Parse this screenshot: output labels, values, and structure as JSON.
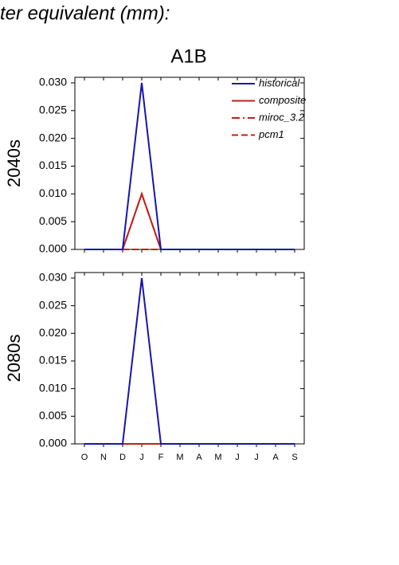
{
  "header": {
    "title": "ter equivalent (mm):",
    "scenario": "A1B"
  },
  "chart_data": [
    {
      "type": "line",
      "ylabel": "2040s",
      "series": [
        {
          "name": "historical",
          "color": "#1515b0",
          "dash": "solid",
          "values": [
            0,
            0,
            0,
            0.03,
            0,
            0,
            0,
            0,
            0,
            0,
            0,
            0
          ]
        },
        {
          "name": "composite",
          "color": "#c0201c",
          "dash": "solid",
          "values": [
            0,
            0,
            0,
            0.01,
            0,
            0,
            0,
            0,
            0,
            0,
            0,
            0
          ]
        },
        {
          "name": "miroc_3.2",
          "color": "#c0201c",
          "dash": "dashdot",
          "values": [
            0,
            0,
            0,
            0.01,
            0,
            0,
            0,
            0,
            0,
            0,
            0,
            0
          ]
        },
        {
          "name": "pcm1",
          "color": "#c0201c",
          "dash": "dashed",
          "values": [
            0,
            0,
            0,
            0,
            0,
            0,
            0,
            0,
            0,
            0,
            0,
            0
          ]
        }
      ],
      "ylim": [
        0,
        0.031
      ],
      "yticks": [
        {
          "value": 0,
          "label": "0.000"
        },
        {
          "value": 0.005,
          "label": "0.005"
        },
        {
          "value": 0.01,
          "label": "0.010"
        },
        {
          "value": 0.015,
          "label": "0.015"
        },
        {
          "value": 0.02,
          "label": "0.020"
        },
        {
          "value": 0.025,
          "label": "0.025"
        },
        {
          "value": 0.03,
          "label": "0.030"
        }
      ]
    },
    {
      "type": "line",
      "ylabel": "2080s",
      "categories": [
        "O",
        "N",
        "D",
        "J",
        "F",
        "M",
        "A",
        "M",
        "J",
        "J",
        "A",
        "S"
      ],
      "series": [
        {
          "color": "#1515b0",
          "dash": "solid",
          "values": [
            0,
            0,
            0,
            0.03,
            0,
            0,
            0,
            0,
            0,
            0,
            0,
            0
          ]
        },
        {
          "color": "#c0201c",
          "dash": "solid",
          "values": [
            0,
            0,
            0,
            0,
            0,
            0,
            0,
            0,
            0,
            0,
            0,
            0
          ]
        },
        {
          "color": "#c0201c",
          "dash": "dashdot",
          "values": [
            0,
            0,
            0,
            0,
            0,
            0,
            0,
            0,
            0,
            0,
            0,
            0
          ]
        },
        {
          "color": "#c0201c",
          "dash": "dashed",
          "values": [
            0,
            0,
            0,
            0,
            0,
            0,
            0,
            0,
            0,
            0,
            0,
            0
          ]
        }
      ],
      "ylim": [
        0,
        0.031
      ],
      "yticks": [
        {
          "value": 0,
          "label": "0.000"
        },
        {
          "value": 0.005,
          "label": "0.005"
        },
        {
          "value": 0.01,
          "label": "0.010"
        },
        {
          "value": 0.015,
          "label": "0.015"
        },
        {
          "value": 0.02,
          "label": "0.020"
        },
        {
          "value": 0.025,
          "label": "0.025"
        },
        {
          "value": 0.03,
          "label": "0.030"
        }
      ]
    }
  ]
}
